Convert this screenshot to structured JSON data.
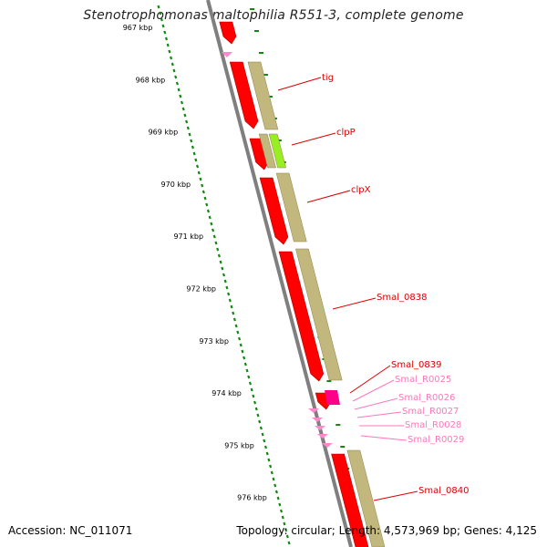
{
  "title": "Stenotrophomonas maltophilia R551-3, complete genome",
  "accession": "Accession: NC_011071",
  "topology": "Topology: circular; Length: 4,573,969 bp; Genes: 4,125",
  "colors": {
    "backbone": "#7f7f7f",
    "ticks": "#118811",
    "cds": "#ff0000",
    "cds_dark": "#b00000",
    "gene_band": "#c2b87d",
    "rna": "#ff88cc",
    "rrna": "#ff0088",
    "clpP_band": "#99ee22",
    "label_red": "#dd0000",
    "label_pink": "#ff77bb"
  },
  "scale_labels": [
    "967 kbp",
    "968 kbp",
    "969 kbp",
    "970 kbp",
    "971 kbp",
    "972 kbp",
    "973 kbp",
    "974 kbp",
    "975 kbp",
    "976 kbp"
  ],
  "features": [
    {
      "name": "tig",
      "type": "CDS"
    },
    {
      "name": "clpP",
      "type": "CDS"
    },
    {
      "name": "clpX",
      "type": "CDS"
    },
    {
      "name": "Smal_0838",
      "type": "CDS"
    },
    {
      "name": "Smal_0839",
      "type": "CDS"
    },
    {
      "name": "Smal_R0025",
      "type": "RNA"
    },
    {
      "name": "Smal_R0026",
      "type": "RNA"
    },
    {
      "name": "Smal_R0027",
      "type": "RNA"
    },
    {
      "name": "Smal_R0028",
      "type": "RNA"
    },
    {
      "name": "Smal_R0029",
      "type": "RNA"
    },
    {
      "name": "Smal_0840",
      "type": "CDS"
    }
  ]
}
